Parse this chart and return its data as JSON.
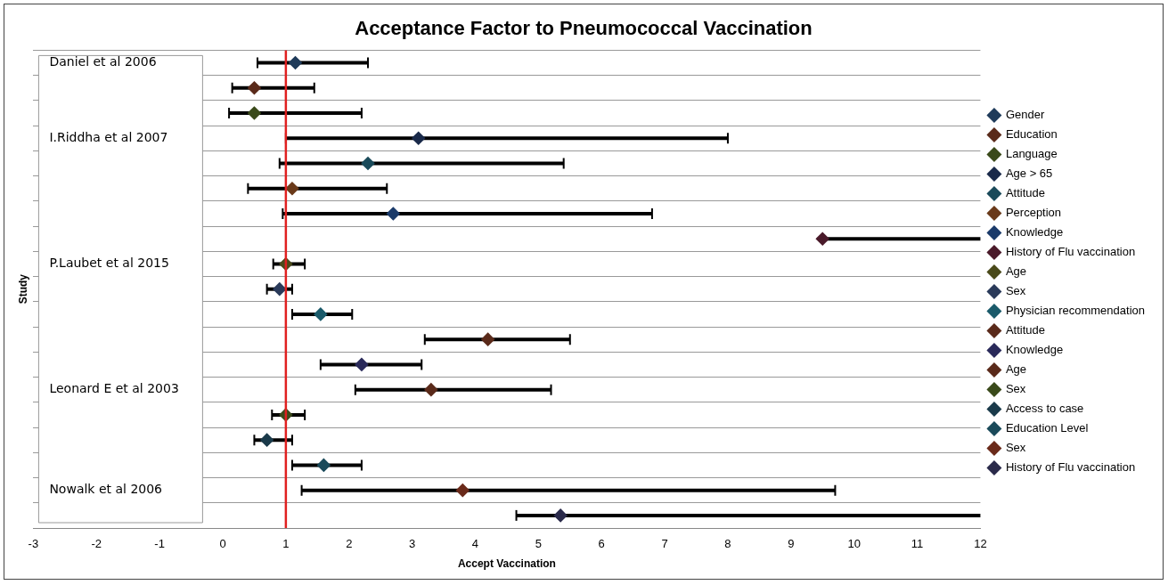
{
  "chart_data": {
    "type": "scatter",
    "orientation": "horizontal",
    "title": "Acceptance Factor to Pneumococcal Vaccination",
    "xlabel": "Accept Vaccination",
    "ylabel": "Study",
    "categories": [
      null,
      null,
      null,
      null,
      null,
      null,
      null,
      null,
      null,
      null,
      null,
      null,
      null,
      null,
      null,
      null,
      null,
      null,
      null
    ],
    "xlim": [
      -3,
      12
    ],
    "xticks": [
      -3,
      -2,
      -1,
      0,
      1,
      2,
      3,
      4,
      5,
      6,
      7,
      8,
      9,
      10,
      11,
      12
    ],
    "grid": "y",
    "legend": "right",
    "marker": "diamond",
    "ref_lines": [
      {
        "axis": "x",
        "value": 1,
        "color": "#e02020"
      }
    ],
    "annotations": [
      "Daniel et al 2006",
      "I.Riddha et al 2007",
      "P.Laubet et al 2015",
      "Leonard E et al 2003",
      "Nowalk et al 2006"
    ],
    "series": [
      {
        "name": "Gender",
        "color": "#1f3b5a",
        "values": [
          1.15,
          null,
          null,
          null,
          null,
          null,
          null,
          null,
          null,
          null,
          null,
          null,
          null,
          null,
          null,
          null,
          null,
          null,
          null
        ],
        "errors": [
          [
            0.55,
            2.3
          ],
          null,
          null,
          null,
          null,
          null,
          null,
          null,
          null,
          null,
          null,
          null,
          null,
          null,
          null,
          null,
          null,
          null,
          null
        ]
      },
      {
        "name": "Education",
        "color": "#5a2a1a",
        "values": [
          null,
          0.5,
          null,
          null,
          null,
          null,
          null,
          null,
          null,
          null,
          null,
          null,
          null,
          null,
          null,
          null,
          null,
          null,
          null
        ],
        "errors": [
          null,
          [
            0.15,
            1.45
          ],
          null,
          null,
          null,
          null,
          null,
          null,
          null,
          null,
          null,
          null,
          null,
          null,
          null,
          null,
          null,
          null,
          null
        ]
      },
      {
        "name": "Language",
        "color": "#3a4a1a",
        "values": [
          null,
          null,
          0.5,
          null,
          null,
          null,
          null,
          null,
          null,
          null,
          null,
          null,
          null,
          null,
          null,
          null,
          null,
          null,
          null
        ],
        "errors": [
          null,
          null,
          [
            0.1,
            2.2
          ],
          null,
          null,
          null,
          null,
          null,
          null,
          null,
          null,
          null,
          null,
          null,
          null,
          null,
          null,
          null,
          null
        ]
      },
      {
        "name": "Age > 65",
        "color": "#1a2a4a",
        "values": [
          null,
          null,
          null,
          3.1,
          null,
          null,
          null,
          null,
          null,
          null,
          null,
          null,
          null,
          null,
          null,
          null,
          null,
          null,
          null
        ],
        "errors": [
          null,
          null,
          null,
          [
            1.0,
            8.0
          ],
          null,
          null,
          null,
          null,
          null,
          null,
          null,
          null,
          null,
          null,
          null,
          null,
          null,
          null,
          null
        ]
      },
      {
        "name": "Attitude",
        "color": "#1a4a5a",
        "values": [
          null,
          null,
          null,
          null,
          2.3,
          null,
          null,
          null,
          null,
          null,
          null,
          null,
          null,
          null,
          null,
          null,
          null,
          null,
          null
        ],
        "errors": [
          null,
          null,
          null,
          null,
          [
            0.9,
            5.4
          ],
          null,
          null,
          null,
          null,
          null,
          null,
          null,
          null,
          null,
          null,
          null,
          null,
          null,
          null
        ]
      },
      {
        "name": "Perception",
        "color": "#6a3a1a",
        "values": [
          null,
          null,
          null,
          null,
          null,
          1.1,
          null,
          null,
          null,
          null,
          null,
          null,
          null,
          null,
          null,
          null,
          null,
          null,
          null
        ],
        "errors": [
          null,
          null,
          null,
          null,
          null,
          [
            0.4,
            2.6
          ],
          null,
          null,
          null,
          null,
          null,
          null,
          null,
          null,
          null,
          null,
          null,
          null,
          null
        ]
      },
      {
        "name": "Knowledge",
        "color": "#1a3a6a",
        "values": [
          null,
          null,
          null,
          null,
          null,
          null,
          2.7,
          null,
          null,
          null,
          null,
          null,
          null,
          null,
          null,
          null,
          null,
          null,
          null
        ],
        "errors": [
          null,
          null,
          null,
          null,
          null,
          null,
          [
            0.95,
            6.8
          ],
          null,
          null,
          null,
          null,
          null,
          null,
          null,
          null,
          null,
          null,
          null,
          null
        ]
      },
      {
        "name": "History of Flu vaccination",
        "color": "#4a1a2a",
        "values": [
          null,
          null,
          null,
          null,
          null,
          null,
          null,
          9.5,
          null,
          null,
          null,
          null,
          null,
          null,
          null,
          null,
          null,
          null,
          null
        ],
        "errors": [
          null,
          null,
          null,
          null,
          null,
          null,
          null,
          [
            9.5,
            12
          ],
          null,
          null,
          null,
          null,
          null,
          null,
          null,
          null,
          null,
          null,
          null
        ]
      },
      {
        "name": "Age",
        "color": "#4a4a1a",
        "values": [
          null,
          null,
          null,
          null,
          null,
          null,
          null,
          null,
          1.0,
          null,
          null,
          null,
          null,
          null,
          null,
          null,
          null,
          null,
          null
        ],
        "errors": [
          null,
          null,
          null,
          null,
          null,
          null,
          null,
          null,
          [
            0.8,
            1.3
          ],
          null,
          null,
          null,
          null,
          null,
          null,
          null,
          null,
          null,
          null
        ]
      },
      {
        "name": "Sex",
        "color": "#2a3a5a",
        "values": [
          null,
          null,
          null,
          null,
          null,
          null,
          null,
          null,
          null,
          0.9,
          null,
          null,
          null,
          null,
          null,
          null,
          null,
          null,
          null
        ],
        "errors": [
          null,
          null,
          null,
          null,
          null,
          null,
          null,
          null,
          null,
          [
            0.7,
            1.1
          ],
          null,
          null,
          null,
          null,
          null,
          null,
          null,
          null,
          null
        ]
      },
      {
        "name": "Physician recommendation",
        "color": "#1a5a6a",
        "values": [
          null,
          null,
          null,
          null,
          null,
          null,
          null,
          null,
          null,
          null,
          1.55,
          null,
          null,
          null,
          null,
          null,
          null,
          null,
          null
        ],
        "errors": [
          null,
          null,
          null,
          null,
          null,
          null,
          null,
          null,
          null,
          null,
          [
            1.1,
            2.05
          ],
          null,
          null,
          null,
          null,
          null,
          null,
          null,
          null
        ]
      },
      {
        "name": "Attitude",
        "color": "#5a2a1a",
        "values": [
          null,
          null,
          null,
          null,
          null,
          null,
          null,
          null,
          null,
          null,
          null,
          4.2,
          null,
          null,
          null,
          null,
          null,
          null,
          null
        ],
        "errors": [
          null,
          null,
          null,
          null,
          null,
          null,
          null,
          null,
          null,
          null,
          null,
          [
            3.2,
            5.5
          ],
          null,
          null,
          null,
          null,
          null,
          null,
          null
        ]
      },
      {
        "name": "Knowledge",
        "color": "#2a2a5a",
        "values": [
          null,
          null,
          null,
          null,
          null,
          null,
          null,
          null,
          null,
          null,
          null,
          null,
          2.2,
          null,
          null,
          null,
          null,
          null,
          null
        ],
        "errors": [
          null,
          null,
          null,
          null,
          null,
          null,
          null,
          null,
          null,
          null,
          null,
          null,
          [
            1.55,
            3.15
          ],
          null,
          null,
          null,
          null,
          null,
          null
        ]
      },
      {
        "name": "Age",
        "color": "#5a2a1a",
        "values": [
          null,
          null,
          null,
          null,
          null,
          null,
          null,
          null,
          null,
          null,
          null,
          null,
          null,
          3.3,
          null,
          null,
          null,
          null,
          null
        ],
        "errors": [
          null,
          null,
          null,
          null,
          null,
          null,
          null,
          null,
          null,
          null,
          null,
          null,
          null,
          [
            2.1,
            5.2
          ],
          null,
          null,
          null,
          null,
          null
        ]
      },
      {
        "name": "Sex",
        "color": "#3a4a1a",
        "values": [
          null,
          null,
          null,
          null,
          null,
          null,
          null,
          null,
          null,
          null,
          null,
          null,
          null,
          null,
          1.0,
          null,
          null,
          null,
          null
        ],
        "errors": [
          null,
          null,
          null,
          null,
          null,
          null,
          null,
          null,
          null,
          null,
          null,
          null,
          null,
          null,
          [
            0.78,
            1.3
          ],
          null,
          null,
          null,
          null
        ]
      },
      {
        "name": "Access to case",
        "color": "#1a3a4a",
        "values": [
          null,
          null,
          null,
          null,
          null,
          null,
          null,
          null,
          null,
          null,
          null,
          null,
          null,
          null,
          null,
          0.7,
          null,
          null,
          null
        ],
        "errors": [
          null,
          null,
          null,
          null,
          null,
          null,
          null,
          null,
          null,
          null,
          null,
          null,
          null,
          null,
          null,
          [
            0.5,
            1.1
          ],
          null,
          null,
          null
        ]
      },
      {
        "name": "Education Level",
        "color": "#1a4a5a",
        "values": [
          null,
          null,
          null,
          null,
          null,
          null,
          null,
          null,
          null,
          null,
          null,
          null,
          null,
          null,
          null,
          null,
          1.6,
          null,
          null
        ],
        "errors": [
          null,
          null,
          null,
          null,
          null,
          null,
          null,
          null,
          null,
          null,
          null,
          null,
          null,
          null,
          null,
          null,
          [
            1.1,
            2.2
          ],
          null,
          null
        ]
      },
      {
        "name": "Sex",
        "color": "#6a2a1a",
        "values": [
          null,
          null,
          null,
          null,
          null,
          null,
          null,
          null,
          null,
          null,
          null,
          null,
          null,
          null,
          null,
          null,
          null,
          3.8,
          null
        ],
        "errors": [
          null,
          null,
          null,
          null,
          null,
          null,
          null,
          null,
          null,
          null,
          null,
          null,
          null,
          null,
          null,
          null,
          null,
          [
            1.25,
            9.7
          ],
          null
        ]
      },
      {
        "name": "History of Flu vaccination",
        "color": "#2a2a4a",
        "values": [
          null,
          null,
          null,
          null,
          null,
          null,
          null,
          null,
          null,
          null,
          null,
          null,
          null,
          null,
          null,
          null,
          null,
          null,
          5.35
        ],
        "errors": [
          null,
          null,
          null,
          null,
          null,
          null,
          null,
          null,
          null,
          null,
          null,
          null,
          null,
          null,
          null,
          null,
          null,
          null,
          [
            4.65,
            12
          ]
        ]
      }
    ]
  }
}
